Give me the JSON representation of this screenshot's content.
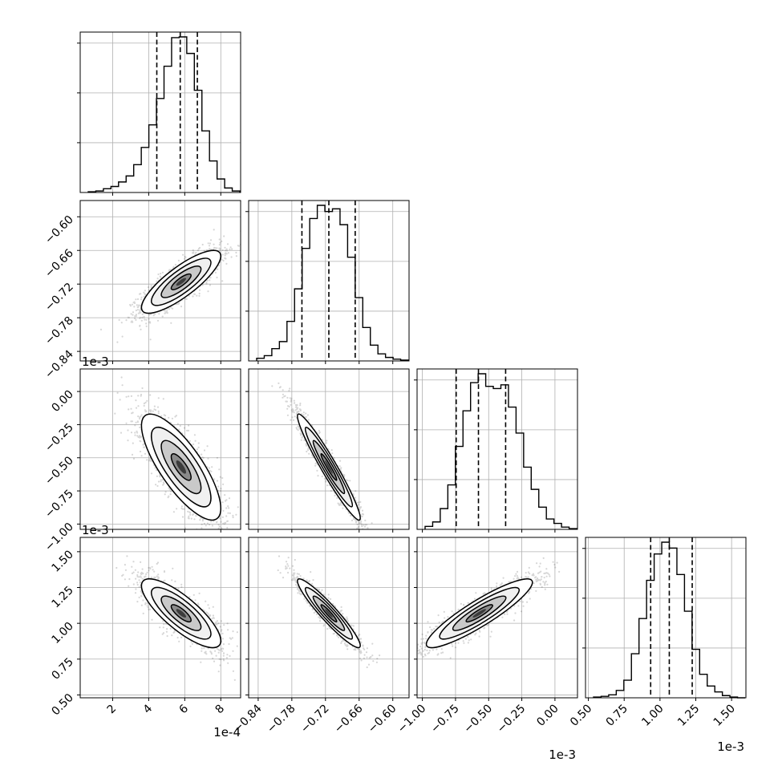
{
  "chart_data": {
    "type": "scatter",
    "variant": "corner",
    "params": [
      {
        "name": "",
        "offset_label": "1e-4",
        "ticks": [
          2,
          4,
          6,
          8
        ],
        "tick_labels": [
          "2",
          "4",
          "6",
          "8"
        ],
        "range": [
          0.2,
          9.1
        ]
      },
      {
        "name": "",
        "offset_label": "1e-3",
        "ticks": [
          -0.84,
          -0.78,
          -0.72,
          -0.66,
          -0.6
        ],
        "tick_labels": [
          "−0.84",
          "−0.78",
          "−0.72",
          "−0.66",
          "−0.60"
        ],
        "range": [
          -0.857,
          -0.571
        ]
      },
      {
        "name": "",
        "offset_label": "1e-3",
        "ticks": [
          -1.0,
          -0.75,
          -0.5,
          -0.25,
          0.0
        ],
        "tick_labels": [
          "−1.00",
          "−0.75",
          "−0.50",
          "−0.25",
          "0.00"
        ],
        "range": [
          -1.04,
          0.17
        ]
      },
      {
        "name": "",
        "offset_label": "1e-3",
        "ticks": [
          0.5,
          0.75,
          1.0,
          1.25,
          1.5
        ],
        "tick_labels": [
          "0.50",
          "0.75",
          "1.00",
          "1.25",
          "1.50"
        ],
        "range": [
          0.48,
          1.6
        ]
      }
    ],
    "histograms": [
      {
        "param": 0,
        "bins": 20,
        "counts": [
          1,
          2,
          5,
          8,
          14,
          22,
          37,
          60,
          90,
          125,
          168,
          206,
          207,
          185,
          136,
          82,
          42,
          18,
          6,
          2
        ],
        "quantiles": [
          4.45,
          5.75,
          6.7
        ]
      },
      {
        "param": 1,
        "bins": 20,
        "counts": [
          3,
          6,
          14,
          22,
          45,
          82,
          128,
          162,
          177,
          170,
          173,
          155,
          118,
          72,
          38,
          18,
          8,
          4,
          2,
          1
        ],
        "quantiles": [
          -0.762,
          -0.714,
          -0.667
        ]
      },
      {
        "param": 2,
        "bins": 20,
        "counts": [
          4,
          10,
          28,
          60,
          112,
          160,
          198,
          210,
          193,
          190,
          195,
          165,
          130,
          84,
          54,
          30,
          14,
          8,
          3,
          1
        ],
        "quantiles": [
          -0.745,
          -0.577,
          -0.372
        ]
      },
      {
        "param": 3,
        "bins": 20,
        "counts": [
          1,
          2,
          4,
          10,
          24,
          60,
          108,
          160,
          196,
          212,
          204,
          168,
          118,
          66,
          32,
          16,
          8,
          3,
          1,
          0
        ],
        "quantiles": [
          0.935,
          1.065,
          1.225
        ]
      }
    ],
    "scatter_panels": [
      {
        "x": 0,
        "y": 1,
        "center": [
          5.8,
          -0.716
        ],
        "spread": [
          1.1,
          0.028
        ],
        "correlation": 0.82
      },
      {
        "x": 0,
        "y": 2,
        "center": [
          5.8,
          -0.57
        ],
        "spread": [
          1.1,
          0.2
        ],
        "correlation": -0.78
      },
      {
        "x": 1,
        "y": 2,
        "center": [
          -0.714,
          -0.57
        ],
        "spread": [
          0.028,
          0.2
        ],
        "correlation": -0.96
      },
      {
        "x": 0,
        "y": 3,
        "center": [
          5.8,
          1.07
        ],
        "spread": [
          1.1,
          0.12
        ],
        "correlation": -0.8
      },
      {
        "x": 1,
        "y": 3,
        "center": [
          -0.714,
          1.07
        ],
        "spread": [
          0.028,
          0.12
        ],
        "correlation": -0.94
      },
      {
        "x": 2,
        "y": 3,
        "center": [
          -0.57,
          1.07
        ],
        "spread": [
          0.2,
          0.12
        ],
        "correlation": 0.9
      }
    ],
    "contour_levels_sigma": [
      0.5,
      1.0,
      1.5,
      2.0
    ],
    "grid": true,
    "colors": {
      "points": "#444444",
      "lines": "#000000",
      "grid": "#b0b0b0"
    }
  }
}
